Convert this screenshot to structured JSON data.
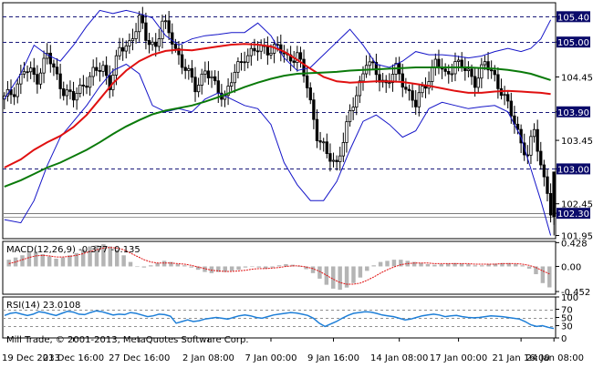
{
  "colors": {
    "background": "#ffffff",
    "candle": "#000000",
    "bollinger": "#1515c8",
    "ma_red": "#e01010",
    "ma_green": "#0a7a0a",
    "level_line": "#1a1a7a",
    "price_box": "#0a0a6a",
    "macd_hist": "#b4b4b4",
    "macd_signal": "#e01010",
    "rsi_line": "#1e7fd8",
    "rsi_levels": "#909090",
    "axis": "#000000"
  },
  "chart_data": [
    {
      "type": "candlestick",
      "panel": "main",
      "ylim": [
        101.9,
        105.62
      ],
      "y_ticks": [
        "105.40",
        "105.00",
        "104.45",
        "103.90",
        "103.45",
        "103.00",
        "102.45",
        "102.30",
        "101.95"
      ],
      "level_labels": [
        "105.40",
        "105.00",
        "103.90",
        "103.00"
      ],
      "levels": [
        105.4,
        105.0,
        103.9,
        103.0
      ],
      "current_price": "102.30",
      "current_price_value": 102.3,
      "current_bid": 102.25,
      "x_labels": [
        "19 Dec 2013",
        "23 Dec 16:00",
        "27 Dec 16:00",
        "2 Jan 08:00",
        "7 Jan 00:00",
        "9 Jan 16:00",
        "14 Jan 08:00",
        "17 Jan 00:00",
        "21 Jan 16:00",
        "24 Jan 08:00"
      ],
      "series_lines": [
        {
          "role": "upper Bollinger band",
          "color": "#1515c8",
          "x": [
            0,
            5,
            9,
            13,
            17,
            21,
            25,
            29,
            33,
            37,
            41,
            45,
            49,
            53,
            57,
            61,
            65,
            69,
            73,
            77,
            81,
            85,
            89,
            93,
            97,
            101,
            105,
            109,
            113,
            117,
            121,
            125,
            129,
            133,
            137,
            141,
            145,
            149,
            153,
            157,
            160,
            163,
            166
          ],
          "y": [
            104.1,
            104.5,
            104.95,
            104.8,
            104.7,
            104.95,
            105.25,
            105.5,
            105.45,
            105.5,
            105.45,
            105.38,
            105.1,
            104.95,
            105.05,
            105.1,
            105.12,
            105.15,
            105.15,
            105.3,
            105.1,
            104.75,
            104.55,
            104.6,
            104.8,
            105.0,
            105.2,
            104.95,
            104.65,
            104.6,
            104.7,
            104.85,
            104.8,
            104.8,
            104.78,
            104.75,
            104.78,
            104.85,
            104.9,
            104.85,
            104.9,
            105.05,
            105.35
          ]
        },
        {
          "role": "lower Bollinger band",
          "color": "#1515c8",
          "x": [
            0,
            5,
            9,
            13,
            17,
            21,
            25,
            29,
            33,
            37,
            41,
            45,
            49,
            53,
            57,
            61,
            65,
            69,
            73,
            77,
            81,
            85,
            89,
            93,
            97,
            101,
            105,
            109,
            113,
            117,
            121,
            125,
            129,
            133,
            137,
            141,
            145,
            149,
            153,
            157,
            160,
            163,
            166
          ],
          "y": [
            102.2,
            102.15,
            102.5,
            103.05,
            103.5,
            103.75,
            104.0,
            104.3,
            104.55,
            104.65,
            104.5,
            104.0,
            103.9,
            103.95,
            103.9,
            104.1,
            104.2,
            104.1,
            104.0,
            103.95,
            103.7,
            103.1,
            102.75,
            102.5,
            102.5,
            102.8,
            103.3,
            103.75,
            103.85,
            103.7,
            103.5,
            103.6,
            103.95,
            104.05,
            104.0,
            103.95,
            103.98,
            104.0,
            103.9,
            103.5,
            103.0,
            102.5,
            101.95
          ]
        },
        {
          "role": "red moving average",
          "color": "#e01010",
          "x": [
            0,
            5,
            9,
            13,
            17,
            21,
            25,
            29,
            33,
            37,
            41,
            45,
            49,
            53,
            57,
            61,
            65,
            69,
            73,
            77,
            81,
            85,
            89,
            93,
            97,
            101,
            105,
            109,
            113,
            117,
            121,
            125,
            129,
            133,
            137,
            141,
            145,
            149,
            153,
            157,
            160,
            163,
            166
          ],
          "y": [
            103.02,
            103.15,
            103.3,
            103.42,
            103.52,
            103.66,
            103.85,
            104.1,
            104.35,
            104.55,
            104.7,
            104.8,
            104.86,
            104.88,
            104.87,
            104.9,
            104.93,
            104.96,
            104.97,
            104.96,
            104.93,
            104.85,
            104.72,
            104.58,
            104.45,
            104.38,
            104.36,
            104.37,
            104.38,
            104.38,
            104.37,
            104.34,
            104.31,
            104.27,
            104.23,
            104.2,
            104.2,
            104.22,
            104.23,
            104.22,
            104.21,
            104.2,
            104.18
          ]
        },
        {
          "role": "green moving average",
          "color": "#0a7a0a",
          "x": [
            0,
            5,
            9,
            13,
            17,
            21,
            25,
            29,
            33,
            37,
            41,
            45,
            49,
            53,
            57,
            61,
            65,
            69,
            73,
            77,
            81,
            85,
            89,
            93,
            97,
            101,
            105,
            109,
            113,
            117,
            121,
            125,
            129,
            133,
            137,
            141,
            145,
            149,
            153,
            157,
            160,
            163,
            166
          ],
          "y": [
            102.72,
            102.82,
            102.92,
            103.02,
            103.1,
            103.2,
            103.3,
            103.42,
            103.55,
            103.67,
            103.77,
            103.86,
            103.92,
            103.96,
            104.0,
            104.06,
            104.13,
            104.21,
            104.29,
            104.36,
            104.42,
            104.47,
            104.5,
            104.51,
            104.52,
            104.53,
            104.55,
            104.56,
            104.57,
            104.58,
            104.59,
            104.6,
            104.6,
            104.6,
            104.6,
            104.6,
            104.59,
            104.58,
            104.56,
            104.53,
            104.5,
            104.45,
            104.4
          ]
        }
      ]
    },
    {
      "type": "histogram",
      "panel": "macd",
      "label": "MACD(12,26,9) -0.377 -0.135",
      "ylim": [
        -0.5,
        0.45
      ],
      "y_ticks": [
        "0.428",
        "0.00",
        "-0.452"
      ],
      "values": [
        0.12,
        0.16,
        0.2,
        0.25,
        0.27,
        0.22,
        0.18,
        0.14,
        0.16,
        0.2,
        0.24,
        0.3,
        0.36,
        0.38,
        0.4,
        0.36,
        0.3,
        0.2,
        0.08,
        0.0,
        -0.02,
        0.02,
        0.06,
        0.1,
        0.08,
        0.04,
        0.02,
        -0.02,
        -0.06,
        -0.1,
        -0.12,
        -0.1,
        -0.1,
        -0.08,
        -0.06,
        -0.02,
        0.0,
        -0.02,
        -0.04,
        -0.02,
        0.02,
        0.04,
        0.03,
        0.0,
        -0.05,
        -0.12,
        -0.22,
        -0.33,
        -0.4,
        -0.42,
        -0.38,
        -0.3,
        -0.2,
        -0.08,
        0.02,
        0.08,
        0.1,
        0.12,
        0.12,
        0.1,
        0.08,
        0.06,
        0.04,
        0.03,
        0.04,
        0.05,
        0.06,
        0.05,
        0.04,
        0.02,
        0.02,
        0.04,
        0.05,
        0.06,
        0.06,
        0.04,
        0.02,
        -0.04,
        -0.14,
        -0.3,
        -0.377
      ],
      "signal": [
        0.05,
        0.08,
        0.12,
        0.16,
        0.19,
        0.2,
        0.19,
        0.17,
        0.17,
        0.18,
        0.2,
        0.23,
        0.27,
        0.3,
        0.33,
        0.34,
        0.33,
        0.3,
        0.24,
        0.18,
        0.12,
        0.08,
        0.06,
        0.06,
        0.06,
        0.05,
        0.04,
        0.02,
        -0.01,
        -0.04,
        -0.07,
        -0.08,
        -0.09,
        -0.09,
        -0.08,
        -0.07,
        -0.05,
        -0.04,
        -0.04,
        -0.03,
        -0.02,
        0.0,
        0.01,
        0.01,
        -0.01,
        -0.04,
        -0.09,
        -0.16,
        -0.23,
        -0.29,
        -0.32,
        -0.32,
        -0.3,
        -0.25,
        -0.19,
        -0.12,
        -0.06,
        -0.01,
        0.03,
        0.05,
        0.06,
        0.06,
        0.06,
        0.05,
        0.05,
        0.05,
        0.05,
        0.05,
        0.05,
        0.04,
        0.04,
        0.04,
        0.04,
        0.05,
        0.05,
        0.05,
        0.04,
        0.02,
        -0.02,
        -0.08,
        -0.135
      ]
    },
    {
      "type": "line",
      "panel": "rsi",
      "label": "RSI(14) 23.0108",
      "ylim": [
        0,
        100
      ],
      "y_ticks": [
        "100",
        "70",
        "50",
        "30",
        "0"
      ],
      "levels": [
        70,
        50,
        30
      ],
      "values": [
        55,
        60,
        62,
        58,
        55,
        58,
        64,
        62,
        58,
        55,
        60,
        65,
        63,
        58,
        57,
        62,
        66,
        64,
        60,
        56,
        58,
        57,
        62,
        60,
        56,
        52,
        54,
        58,
        57,
        53,
        36,
        40,
        44,
        40,
        42,
        46,
        48,
        50,
        48,
        46,
        50,
        54,
        56,
        54,
        50,
        48,
        52,
        56,
        58,
        60,
        62,
        61,
        58,
        55,
        48,
        36,
        28,
        34,
        40,
        48,
        55,
        60,
        62,
        64,
        63,
        60,
        56,
        54,
        52,
        48,
        44,
        46,
        50,
        54,
        56,
        58,
        56,
        52,
        54,
        55,
        52,
        50,
        49,
        50,
        52,
        54,
        53,
        52,
        50,
        48,
        46,
        40,
        32,
        28,
        30,
        26,
        23
      ]
    }
  ],
  "watermark": "Mill Trade, © 2001-2013, MetaQuotes Software Corp."
}
